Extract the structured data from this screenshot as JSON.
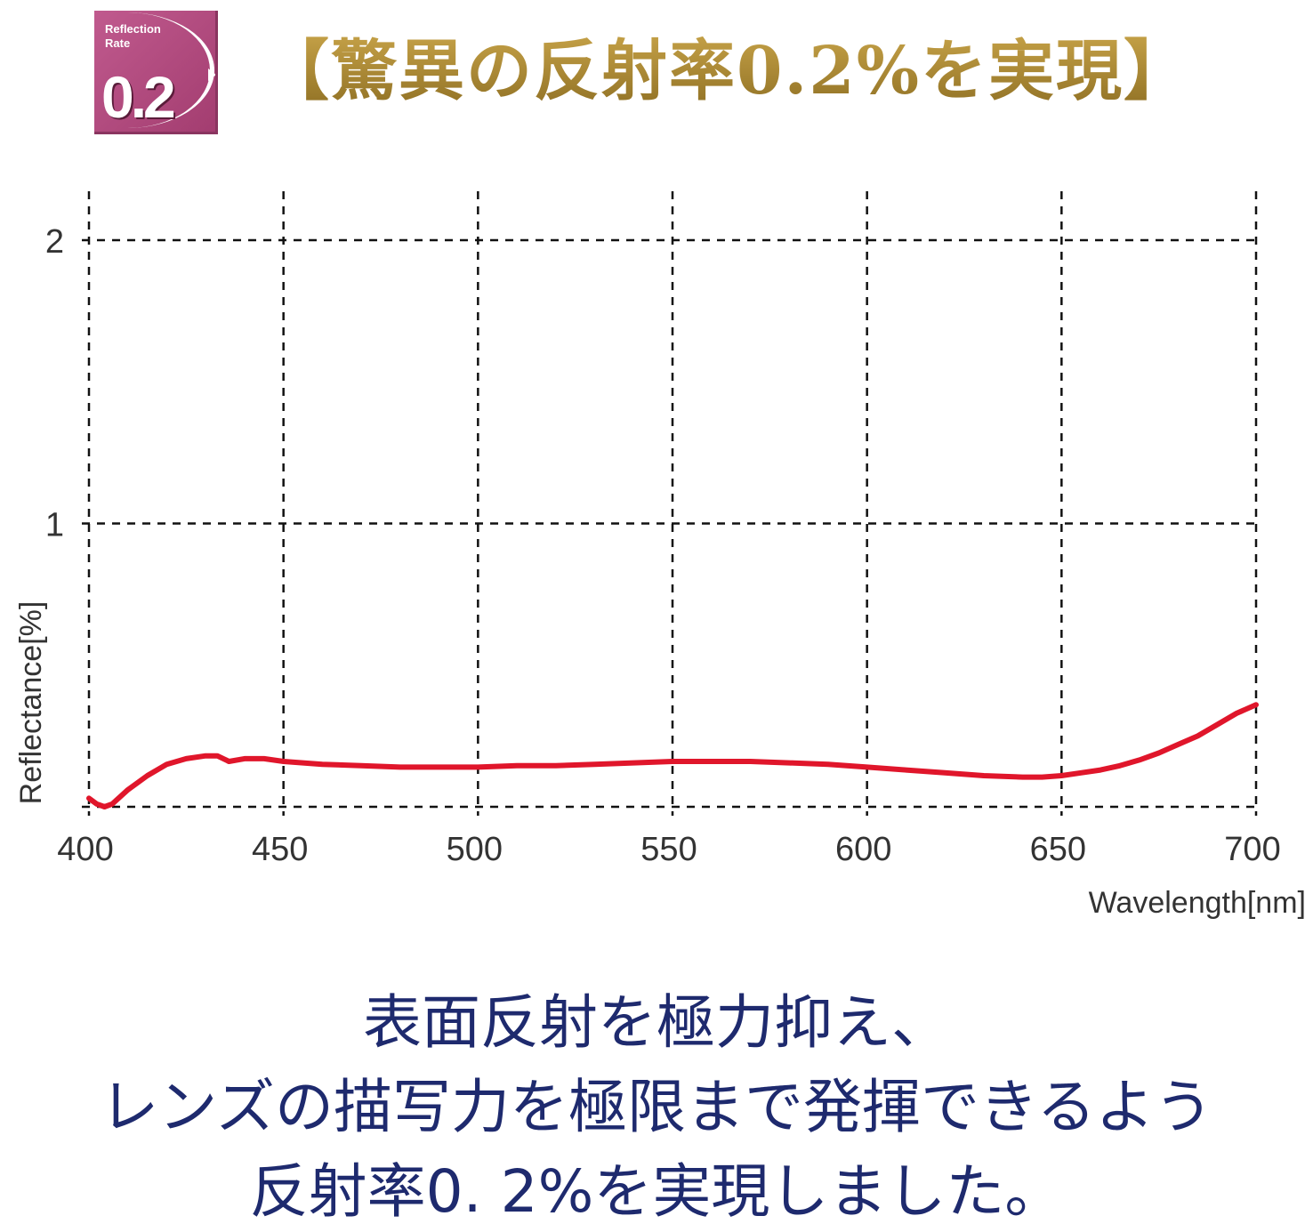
{
  "badge": {
    "line1": "Reflection",
    "line2": "Rate",
    "value": "0.2"
  },
  "headline": "【驚異の反射率0.2%を実現】",
  "chart_data": {
    "type": "line",
    "xlabel": "Wavelength[nm]",
    "ylabel": "Reflectance[%]",
    "xlim": [
      400,
      700
    ],
    "ylim": [
      0,
      2
    ],
    "x_ticks": [
      "400",
      "450",
      "500",
      "550",
      "600",
      "650",
      "700"
    ],
    "y_ticks": [
      "1",
      "2"
    ],
    "grid": true,
    "grid_style": "dashed",
    "series": [
      {
        "color": "#e0162b",
        "x": [
          400,
          402,
          404,
          406,
          410,
          415,
          420,
          425,
          430,
          433,
          436,
          440,
          445,
          450,
          460,
          470,
          480,
          490,
          500,
          510,
          520,
          530,
          540,
          550,
          560,
          570,
          580,
          590,
          600,
          610,
          620,
          630,
          640,
          645,
          650,
          655,
          660,
          665,
          670,
          675,
          680,
          685,
          690,
          695,
          700
        ],
        "y": [
          0.03,
          0.01,
          0.0,
          0.01,
          0.06,
          0.11,
          0.15,
          0.17,
          0.18,
          0.18,
          0.16,
          0.17,
          0.17,
          0.16,
          0.15,
          0.145,
          0.14,
          0.14,
          0.14,
          0.145,
          0.145,
          0.15,
          0.155,
          0.16,
          0.16,
          0.16,
          0.155,
          0.15,
          0.14,
          0.13,
          0.12,
          0.11,
          0.105,
          0.105,
          0.11,
          0.12,
          0.13,
          0.145,
          0.165,
          0.19,
          0.22,
          0.25,
          0.29,
          0.33,
          0.36
        ]
      }
    ]
  },
  "caption": {
    "line1": "表面反射を極力抑え、",
    "line2": "レンズの描写力を極限まで発揮できるよう",
    "line3": "反射率0. 2%を実現しました。"
  }
}
